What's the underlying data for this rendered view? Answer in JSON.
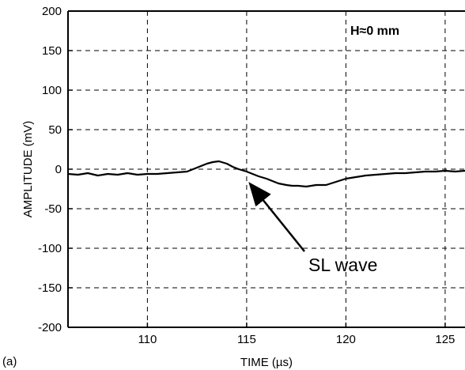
{
  "panel_label": "(a)",
  "chart_data": {
    "type": "line",
    "title": "",
    "xlabel": "TIME (µs)",
    "ylabel": "AMPLITUDE (mV)",
    "xlim": [
      106,
      126
    ],
    "ylim": [
      -200,
      200
    ],
    "x_ticks": [
      110,
      115,
      120,
      125
    ],
    "y_ticks": [
      200,
      150,
      100,
      50,
      0,
      -50,
      -100,
      -150,
      -200
    ],
    "grid": true,
    "series": [
      {
        "color": "#000000",
        "x": [
          106.0,
          106.5,
          107.0,
          107.5,
          108.0,
          108.5,
          109.0,
          109.5,
          110.0,
          110.5,
          111.0,
          111.5,
          112.0,
          112.5,
          113.0,
          113.3,
          113.6,
          114.0,
          114.3,
          114.6,
          115.0,
          115.3,
          115.6,
          116.0,
          116.3,
          116.6,
          117.0,
          117.3,
          117.6,
          118.0,
          118.5,
          119.0,
          119.5,
          120.0,
          120.5,
          121.0,
          121.5,
          122.0,
          122.5,
          123.0,
          123.5,
          124.0,
          124.5,
          125.0,
          125.5,
          126.0
        ],
        "y": [
          -6,
          -7,
          -5,
          -8,
          -6,
          -7,
          -5,
          -7,
          -6,
          -6,
          -5,
          -4,
          -3,
          2,
          7,
          9,
          10,
          7,
          3,
          0,
          -3,
          -6,
          -9,
          -12,
          -15,
          -18,
          -20,
          -21,
          -21,
          -22,
          -20,
          -20,
          -16,
          -12,
          -10,
          -8,
          -7,
          -6,
          -5,
          -5,
          -4,
          -3,
          -3,
          -2,
          -3,
          -2
        ]
      }
    ],
    "annotations": [
      {
        "text": "H≈0 mm",
        "location": "top-right"
      },
      {
        "text": "SL wave",
        "arrow_to": {
          "x": 115.1,
          "y": -6
        }
      }
    ]
  }
}
